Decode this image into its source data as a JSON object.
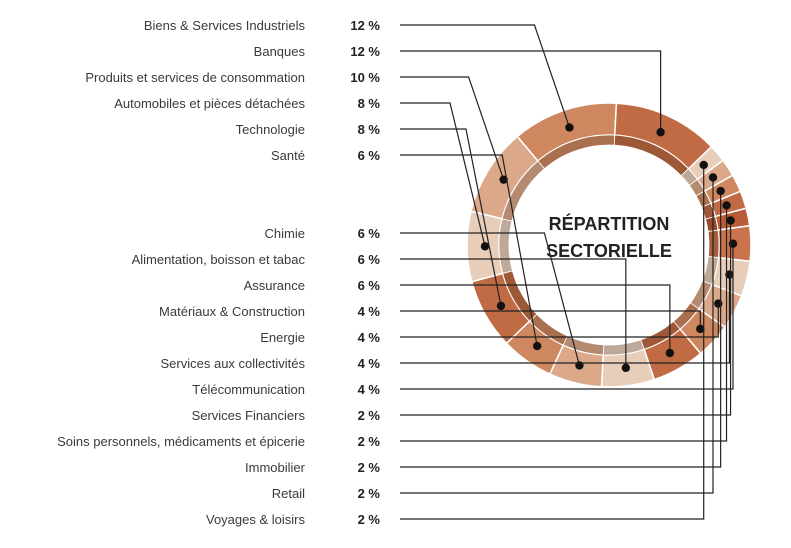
{
  "chart_data": {
    "type": "pie",
    "title": [
      "RÉPARTITION",
      "SECTORIELLE"
    ],
    "unit_suffix": " %",
    "categories": [
      "Biens & Services Industriels",
      "Banques",
      "Produits et services de consommation",
      "Automobiles et pièces détachées",
      "Technologie",
      "Santé",
      "Chimie",
      "Alimentation, boisson et tabac",
      "Assurance",
      "Matériaux & Construction",
      "Energie",
      "Services aux collectivités",
      "Télécommunication",
      "Services Financiers",
      "Soins personnels, médicaments et épicerie",
      "Immobilier",
      "Retail",
      "Voyages & loisirs"
    ],
    "values": [
      12,
      12,
      10,
      8,
      8,
      6,
      6,
      6,
      6,
      4,
      4,
      4,
      4,
      2,
      2,
      2,
      2,
      2
    ],
    "ring_order": [
      "Automobiles et pièces détachées",
      "Produits et services de consommation",
      "Biens & Services Industriels",
      "Banques",
      "Voyages & loisirs",
      "Retail",
      "Immobilier",
      "Soins personnels, médicaments et épicerie",
      "Services Financiers",
      "Télécommunication",
      "Services aux collectivités",
      "Energie",
      "Matériaux & Construction",
      "Assurance",
      "Alimentation, boisson et tabac",
      "Chimie",
      "Santé",
      "Technologie"
    ],
    "colors": {
      "Automobiles et pièces détachées": "#e8cdb9",
      "Produits et services de consommation": "#dba98a",
      "Biens & Services Industriels": "#cf875f",
      "Banques": "#c06b44",
      "Voyages & loisirs": "#e8cdb9",
      "Retail": "#dba98a",
      "Immobilier": "#cf875f",
      "Soins personnels, médicaments et épicerie": "#c06b44",
      "Services Financiers": "#b85a35",
      "Télécommunication": "#c8734b",
      "Services aux collectivités": "#e8cdb9",
      "Energie": "#dba98a",
      "Matériaux & Construction": "#cf875f",
      "Assurance": "#c06b44",
      "Alimentation, boisson et tabac": "#e8cdb9",
      "Chimie": "#dba98a",
      "Santé": "#cf875f",
      "Technologie": "#c06b44"
    },
    "legend_placement": "left"
  }
}
